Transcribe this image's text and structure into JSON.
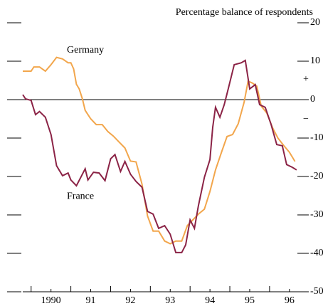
{
  "chart_data": {
    "type": "line",
    "title": "Percentage balance of respondents",
    "sign_labels": [
      "+",
      "−"
    ],
    "ylim": [
      -50,
      20
    ],
    "yticks": [
      20,
      10,
      0,
      -10,
      -20,
      -30,
      -40,
      -50
    ],
    "xlim": [
      1989.79,
      1996.7
    ],
    "xticks": [
      {
        "value": 1990.5,
        "label": "1990"
      },
      {
        "value": 1991.5,
        "label": "91"
      },
      {
        "value": 1992.5,
        "label": "92"
      },
      {
        "value": 1993.5,
        "label": "93"
      },
      {
        "value": 1994.5,
        "label": "94"
      },
      {
        "value": 1995.5,
        "label": "95"
      },
      {
        "value": 1996.5,
        "label": "96"
      }
    ],
    "xminorticks": [
      1990,
      1991,
      1992,
      1993,
      1994,
      1995,
      1996
    ],
    "annotations": [
      {
        "text": "Germany",
        "x": 1990.9,
        "y": 12.8
      },
      {
        "text": "France",
        "x": 1990.9,
        "y": -25.2
      }
    ],
    "series": [
      {
        "name": "Germany",
        "color": "#f2a64c",
        "x": [
          1989.79,
          1990.0,
          1990.07,
          1990.21,
          1990.36,
          1990.5,
          1990.64,
          1990.79,
          1990.93,
          1991.0,
          1991.07,
          1991.14,
          1991.21,
          1991.29,
          1991.36,
          1991.5,
          1991.64,
          1991.79,
          1991.93,
          1992.07,
          1992.21,
          1992.36,
          1992.5,
          1992.64,
          1992.79,
          1992.93,
          1993.07,
          1993.21,
          1993.36,
          1993.5,
          1993.64,
          1993.79,
          1993.93,
          1994.07,
          1994.21,
          1994.36,
          1994.5,
          1994.64,
          1994.79,
          1994.93,
          1995.07,
          1995.21,
          1995.36,
          1995.46,
          1995.57,
          1995.68,
          1995.79,
          1995.93,
          1996.07,
          1996.21,
          1996.36,
          1996.5,
          1996.64
        ],
        "values": [
          7.4,
          7.4,
          8.5,
          8.5,
          7.4,
          9.1,
          11,
          10.6,
          9.6,
          9.6,
          8,
          4,
          2.8,
          0.2,
          -2.8,
          -5,
          -6.5,
          -6.5,
          -8.3,
          -9.5,
          -11,
          -12.6,
          -16,
          -16.2,
          -22,
          -30.3,
          -34.2,
          -34.2,
          -36.8,
          -37.5,
          -36.8,
          -36.8,
          -32.8,
          -31.3,
          -29.8,
          -28.5,
          -23.9,
          -18.3,
          -13.7,
          -9.6,
          -9.1,
          -6.3,
          -0.7,
          4.8,
          4.3,
          3.5,
          -1.7,
          -3.5,
          -7.2,
          -10,
          -12,
          -13.7,
          -16.1
        ]
      },
      {
        "name": "France",
        "color": "#8b2346",
        "x": [
          1989.79,
          1989.86,
          1990.0,
          1990.11,
          1990.21,
          1990.36,
          1990.5,
          1990.64,
          1990.79,
          1990.93,
          1991.0,
          1991.14,
          1991.25,
          1991.36,
          1991.43,
          1991.57,
          1991.71,
          1991.86,
          1992.0,
          1992.11,
          1992.25,
          1992.36,
          1992.5,
          1992.64,
          1992.79,
          1992.93,
          1993.07,
          1993.21,
          1993.36,
          1993.5,
          1993.64,
          1993.79,
          1993.89,
          1994.0,
          1994.11,
          1994.21,
          1994.36,
          1994.5,
          1994.57,
          1994.64,
          1994.75,
          1994.86,
          1994.96,
          1995.11,
          1995.29,
          1995.39,
          1995.5,
          1995.64,
          1995.75,
          1995.89,
          1996.04,
          1996.18,
          1996.32,
          1996.43,
          1996.57,
          1996.68
        ],
        "values": [
          1.3,
          0.2,
          -0.2,
          -3.9,
          -3.1,
          -4.6,
          -9.1,
          -17.2,
          -19.8,
          -19.1,
          -20.9,
          -22.4,
          -20.2,
          -18,
          -20.9,
          -18.9,
          -19.1,
          -21.1,
          -15.4,
          -14.3,
          -18.7,
          -16.1,
          -19.4,
          -21.3,
          -22.8,
          -29.1,
          -29.8,
          -33.5,
          -32.8,
          -35,
          -39.8,
          -39.8,
          -37.8,
          -31.3,
          -33.5,
          -27.6,
          -20.2,
          -15.6,
          -7.2,
          -2,
          -4.6,
          -1.3,
          2.8,
          9.1,
          9.6,
          10.2,
          2.8,
          3.9,
          -1.3,
          -2,
          -6.5,
          -11.7,
          -12,
          -16.9,
          -17.6,
          -18.3
        ]
      }
    ]
  }
}
